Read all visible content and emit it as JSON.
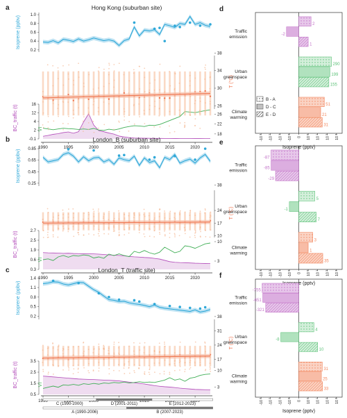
{
  "colors": {
    "isoprene": "#2fa8d8",
    "isoprene_band": "#bfe3f3",
    "temperature": "#f07a55",
    "temperature_band": "#f7c2ad",
    "temp_points": "#f5b995",
    "vi": "#3fae55",
    "bc": "#b148b8",
    "bc_fill": "#efdcf0",
    "traffic": "#c272c8",
    "traffic_fill": "#e7c8ea",
    "green": "#5ec27a",
    "green_fill": "#d4efdb",
    "warming": "#f2875f",
    "warming_fill": "#fad3c4"
  },
  "chart_data": [
    {
      "panel": "a",
      "type": "line",
      "title": "Hong Kong (suburban site)",
      "x": [
        1990,
        1991,
        1992,
        1993,
        1994,
        1995,
        1996,
        1997,
        1998,
        1999,
        2000,
        2001,
        2002,
        2003,
        2004,
        2005,
        2006,
        2007,
        2008,
        2009,
        2010,
        2011,
        2012,
        2013,
        2014,
        2015,
        2016,
        2017,
        2018,
        2019,
        2020,
        2021,
        2022,
        2023
      ],
      "x_ticks": [
        1990,
        1995,
        2000,
        2005,
        2010,
        2015,
        2020
      ],
      "isoprene": {
        "ylabel": "Isoprene (ppbv)",
        "ticks": [
          "0.2",
          "0.4",
          "0.6",
          "0.8",
          "1.0"
        ],
        "ylim": [
          0.15,
          1.05
        ],
        "values": [
          0.38,
          0.37,
          0.41,
          0.36,
          0.44,
          0.42,
          0.39,
          0.45,
          0.4,
          0.43,
          0.47,
          0.44,
          0.41,
          0.43,
          0.4,
          0.3,
          0.41,
          0.45,
          0.72,
          0.52,
          0.65,
          0.63,
          0.66,
          0.55,
          0.78,
          0.75,
          0.71,
          0.8,
          0.78,
          0.96,
          0.78,
          0.82,
          0.76,
          0.73
        ],
        "obs_x": [
          2008,
          2012,
          2013,
          2014,
          2016,
          2017,
          2019,
          2021,
          2023
        ],
        "obs_y": [
          0.82,
          0.68,
          0.7,
          0.4,
          0.75,
          0.72,
          0.82,
          0.75,
          0.78
        ]
      },
      "temperature": {
        "ylabel": "T (°C)",
        "ticks": [
          "26",
          "30",
          "34",
          "38"
        ],
        "ylim": [
          24,
          39
        ],
        "trend": [
          27.8,
          28.8
        ]
      },
      "bc": {
        "ylabel": "BC_traffic (t)",
        "ticks": [
          "-0.1",
          "2",
          "4",
          "12",
          "16"
        ],
        "ylim": [
          0,
          16
        ],
        "values": [
          1.2,
          1.6,
          2.1,
          2.4,
          2.9,
          3.2,
          2.6,
          3.3,
          7.8,
          11.6,
          6.4,
          3.8,
          3.3,
          2.7,
          2.2,
          1.3,
          0.9,
          0.6,
          0.4,
          0.35,
          0.3,
          0.28,
          0.25,
          0.22,
          0.2,
          0.2,
          0.18,
          0.17,
          0.16,
          0.15,
          0.14,
          0.14,
          0.13,
          0.12
        ]
      },
      "vi": {
        "ylabel": "VI",
        "ticks": [
          "18",
          "22",
          "26"
        ],
        "ylim": [
          16,
          30
        ],
        "values": [
          20.3,
          20.0,
          19.7,
          20.0,
          20.3,
          20.1,
          20.0,
          19.8,
          20.0,
          19.8,
          20.2,
          19.6,
          19.4,
          19.9,
          19.6,
          20.0,
          20.6,
          21.0,
          21.3,
          21.2,
          21.0,
          21.5,
          21.4,
          21.8,
          22.6,
          23.4,
          24.2,
          25.0,
          27.0,
          26.8,
          26.6,
          27.0,
          27.4,
          27.7
        ]
      }
    },
    {
      "panel": "b",
      "type": "line",
      "title": "London_B (suburban site)",
      "x": [
        1990,
        1991,
        1992,
        1993,
        1994,
        1995,
        1996,
        1997,
        1998,
        1999,
        2000,
        2001,
        2002,
        2003,
        2004,
        2005,
        2006,
        2007,
        2008,
        2009,
        2010,
        2011,
        2012,
        2013,
        2014,
        2015,
        2016,
        2017,
        2018,
        2019,
        2020,
        2021,
        2022,
        2023
      ],
      "x_ticks": [
        1990,
        1995,
        2000,
        2005,
        2010,
        2015,
        2020
      ],
      "isoprene": {
        "ylabel": "Isoprene (ppbv)",
        "ticks": [
          "0.25",
          "0.45",
          "0.65",
          "0.85"
        ],
        "ylim": [
          0.2,
          0.9
        ],
        "values": [
          0.7,
          0.62,
          0.64,
          0.66,
          0.75,
          0.78,
          0.72,
          0.62,
          0.71,
          0.64,
          0.69,
          0.7,
          0.62,
          0.66,
          0.58,
          0.69,
          0.66,
          0.64,
          0.72,
          0.56,
          0.69,
          0.61,
          0.64,
          0.52,
          0.7,
          0.66,
          0.75,
          0.6,
          0.64,
          0.67,
          0.6,
          0.69,
          0.75,
          0.63
        ],
        "obs_x": [
          1995,
          2000,
          2005,
          2006,
          2011,
          2012,
          2016,
          2020,
          2022
        ],
        "obs_y": [
          0.84,
          0.82,
          0.73,
          0.74,
          0.66,
          0.7,
          0.72,
          0.66,
          0.85
        ]
      },
      "temperature": {
        "ylabel": "T (°C)",
        "ticks": [
          "10",
          "17",
          "24",
          "38"
        ],
        "ylim": [
          6,
          39
        ],
        "trend": [
          17.0,
          17.6
        ]
      },
      "bc": {
        "ylabel": "BC_traffic (t)",
        "ticks": [
          "0.3",
          "0.6",
          "1.9",
          "2.5",
          "2.7"
        ],
        "ylim": [
          0,
          3.0
        ],
        "values": [
          1.3,
          1.28,
          1.27,
          1.26,
          1.24,
          1.25,
          1.23,
          1.22,
          1.21,
          1.22,
          1.2,
          1.18,
          1.15,
          1.12,
          1.1,
          1.08,
          1.05,
          1.0,
          0.97,
          0.95,
          0.92,
          0.9,
          0.85,
          0.8,
          0.7,
          0.6,
          0.55,
          0.53,
          0.52,
          0.5,
          0.48,
          0.47,
          0.46,
          0.45
        ]
      },
      "vi": {
        "ylabel": "VI",
        "ticks": [
          "3",
          "10"
        ],
        "ylim": [
          0,
          14
        ],
        "values": [
          3.5,
          3.8,
          3.2,
          4.5,
          5.0,
          4.4,
          5.0,
          4.8,
          5.2,
          5.0,
          4.1,
          4.5,
          4.0,
          5.5,
          5.0,
          5.6,
          5.0,
          4.6,
          6.5,
          6.0,
          6.8,
          6.0,
          5.5,
          6.2,
          8.0,
          7.0,
          6.0,
          6.5,
          8.5,
          8.2,
          7.6,
          8.4,
          9.2,
          9.5
        ]
      }
    },
    {
      "panel": "c",
      "type": "line",
      "title": "London_T (traffic site)",
      "x": [
        1990,
        1991,
        1992,
        1993,
        1994,
        1995,
        1996,
        1997,
        1998,
        1999,
        2000,
        2001,
        2002,
        2003,
        2004,
        2005,
        2006,
        2007,
        2008,
        2009,
        2010,
        2011,
        2012,
        2013,
        2014,
        2015,
        2016,
        2017,
        2018,
        2019,
        2020,
        2021,
        2022,
        2023
      ],
      "x_ticks": [
        1990,
        1995,
        2000,
        2005,
        2010,
        2015,
        2020
      ],
      "isoprene": {
        "ylabel": "Isoprene (ppbv)",
        "ticks": [
          "0.2",
          "0.5",
          "0.8",
          "1.1",
          "1.4"
        ],
        "ylim": [
          0.1,
          1.45
        ],
        "values": [
          1.22,
          1.24,
          1.28,
          1.27,
          1.21,
          1.18,
          1.22,
          1.26,
          1.25,
          1.14,
          1.03,
          0.95,
          0.83,
          0.72,
          0.7,
          0.66,
          0.67,
          0.62,
          0.59,
          0.57,
          0.54,
          0.5,
          0.55,
          0.48,
          0.45,
          0.43,
          0.41,
          0.39,
          0.37,
          0.35,
          0.4,
          0.33,
          0.36,
          0.41
        ],
        "obs_x": [
          1992,
          1997,
          2001,
          2003,
          2005,
          2008,
          2009,
          2012,
          2015,
          2017,
          2019,
          2021,
          2022
        ],
        "obs_y": [
          1.31,
          1.24,
          0.92,
          0.8,
          0.72,
          0.7,
          0.66,
          0.58,
          0.52,
          0.49,
          0.46,
          0.44,
          0.48
        ]
      },
      "temperature": {
        "ylabel": "T (°C)",
        "ticks": [
          "17",
          "24",
          "31",
          "38"
        ],
        "ylim": [
          10,
          40
        ],
        "trend": [
          17.6,
          18.6
        ]
      },
      "bc": {
        "ylabel": "BC_traffic (t)",
        "ticks": [
          "0.5",
          "1.5",
          "2.5",
          "3.5"
        ],
        "ylim": [
          0,
          4.0
        ],
        "values": [
          2.2,
          2.15,
          2.1,
          2.05,
          2.0,
          1.95,
          1.9,
          1.85,
          1.82,
          1.8,
          1.78,
          1.75,
          1.72,
          1.7,
          1.66,
          1.62,
          1.55,
          1.48,
          1.4,
          1.32,
          1.25,
          1.15,
          1.05,
          0.98,
          0.92,
          0.88,
          0.82,
          0.75,
          0.7,
          0.65,
          0.6,
          0.58,
          0.56,
          0.55
        ]
      },
      "vi": {
        "ylabel": "VI",
        "ticks": [
          "3",
          "10"
        ],
        "ylim": [
          0,
          14
        ],
        "values": [
          2.5,
          3.0,
          3.5,
          3.0,
          4.0,
          3.8,
          4.2,
          3.8,
          4.5,
          4.2,
          4.6,
          4.3,
          4.8,
          4.6,
          5.0,
          4.8,
          5.2,
          4.8,
          5.0,
          5.3,
          5.0,
          5.2,
          5.0,
          5.5,
          6.0,
          7.0,
          6.0,
          6.5,
          5.5,
          6.8,
          7.2,
          8.0,
          8.4,
          8.6
        ]
      }
    },
    {
      "panel": "d",
      "type": "bar",
      "xlabel": "Isoprene (pptv)",
      "x_ticks": [
        "-10",
        "-10",
        "-10",
        "-10",
        "0",
        "10",
        "10",
        "10",
        "10"
      ],
      "x_tick_powers": [
        "3",
        "2",
        "1",
        "0",
        "",
        "0",
        "1",
        "2",
        "3"
      ],
      "groups": [
        {
          "label": [
            "Traffic",
            "emission"
          ],
          "color": "traffic",
          "values": [
            2,
            -2,
            1
          ]
        },
        {
          "label": [
            "Urban",
            "greenspace"
          ],
          "color": "green",
          "values": [
            290,
            199,
            155
          ]
        },
        {
          "label": [
            "Climate",
            "warming"
          ],
          "color": "warming",
          "values": [
            51,
            21,
            31
          ]
        }
      ],
      "value_labels": [
        [
          "2",
          "-2",
          "1"
        ],
        [
          "290",
          "199",
          "155"
        ],
        [
          "51",
          "21",
          "31"
        ]
      ],
      "legend": [
        "B - A",
        "D - C",
        "E - D"
      ]
    },
    {
      "panel": "e",
      "type": "bar",
      "xlabel": "Isoprene (pptv)",
      "x_ticks": [
        "-10",
        "-10",
        "-10",
        "-10",
        "0",
        "10",
        "10",
        "10",
        "10"
      ],
      "x_tick_powers": [
        "3",
        "2",
        "1",
        "0",
        "",
        "0",
        "1",
        "2",
        "3"
      ],
      "groups": [
        {
          "label": [
            "Traffic",
            "emission"
          ],
          "color": "traffic",
          "values": [
            -87,
            -85,
            -29
          ]
        },
        {
          "label": [
            "Urban",
            "greenspace"
          ],
          "color": "green",
          "values": [
            5,
            -1,
            7
          ]
        },
        {
          "label": [
            "Climate",
            "warming"
          ],
          "color": "warming",
          "values": [
            3,
            1,
            35
          ]
        }
      ],
      "value_labels": [
        [
          "-87",
          "-85",
          "-29"
        ],
        [
          "5",
          "-1",
          "7"
        ],
        [
          "3",
          "1",
          "35"
        ]
      ]
    },
    {
      "panel": "f",
      "type": "bar",
      "xlabel": "Isoprene (pptv)",
      "x_ticks": [
        "-10",
        "-10",
        "-10",
        "-10",
        "0",
        "10",
        "10",
        "10",
        "10"
      ],
      "x_tick_powers": [
        "3",
        "2",
        "1",
        "0",
        "",
        "0",
        "1",
        "2",
        "3"
      ],
      "groups": [
        {
          "label": [
            "Traffic",
            "emission"
          ],
          "color": "traffic",
          "values": [
            -755,
            -651,
            -321
          ]
        },
        {
          "label": [
            "Urban",
            "greenspace"
          ],
          "color": "green",
          "values": [
            4,
            -8,
            10
          ]
        },
        {
          "label": [
            "Climate",
            "warming"
          ],
          "color": "warming",
          "values": [
            31,
            25,
            33
          ]
        }
      ],
      "value_labels": [
        [
          "-755",
          "-651",
          "-321"
        ],
        [
          "4",
          "-8",
          "10"
        ],
        [
          "31",
          "25",
          "33"
        ]
      ]
    }
  ],
  "periods": {
    "row1": [
      {
        "label": "C (1990-2000)",
        "from": 1990,
        "to": 2000.5,
        "dark": false
      },
      {
        "label": "D (2001-2011)",
        "from": 2000.5,
        "to": 2011.5,
        "dark": true
      },
      {
        "label": "E (2012-2023)",
        "from": 2011.5,
        "to": 2023.5,
        "dark": false
      }
    ],
    "row2": [
      {
        "label": "A (1990-2006)",
        "from": 1990,
        "to": 2006.5,
        "dark": false
      },
      {
        "label": "B (2007-2023)",
        "from": 2006.5,
        "to": 2023.5,
        "dark": true
      }
    ]
  }
}
